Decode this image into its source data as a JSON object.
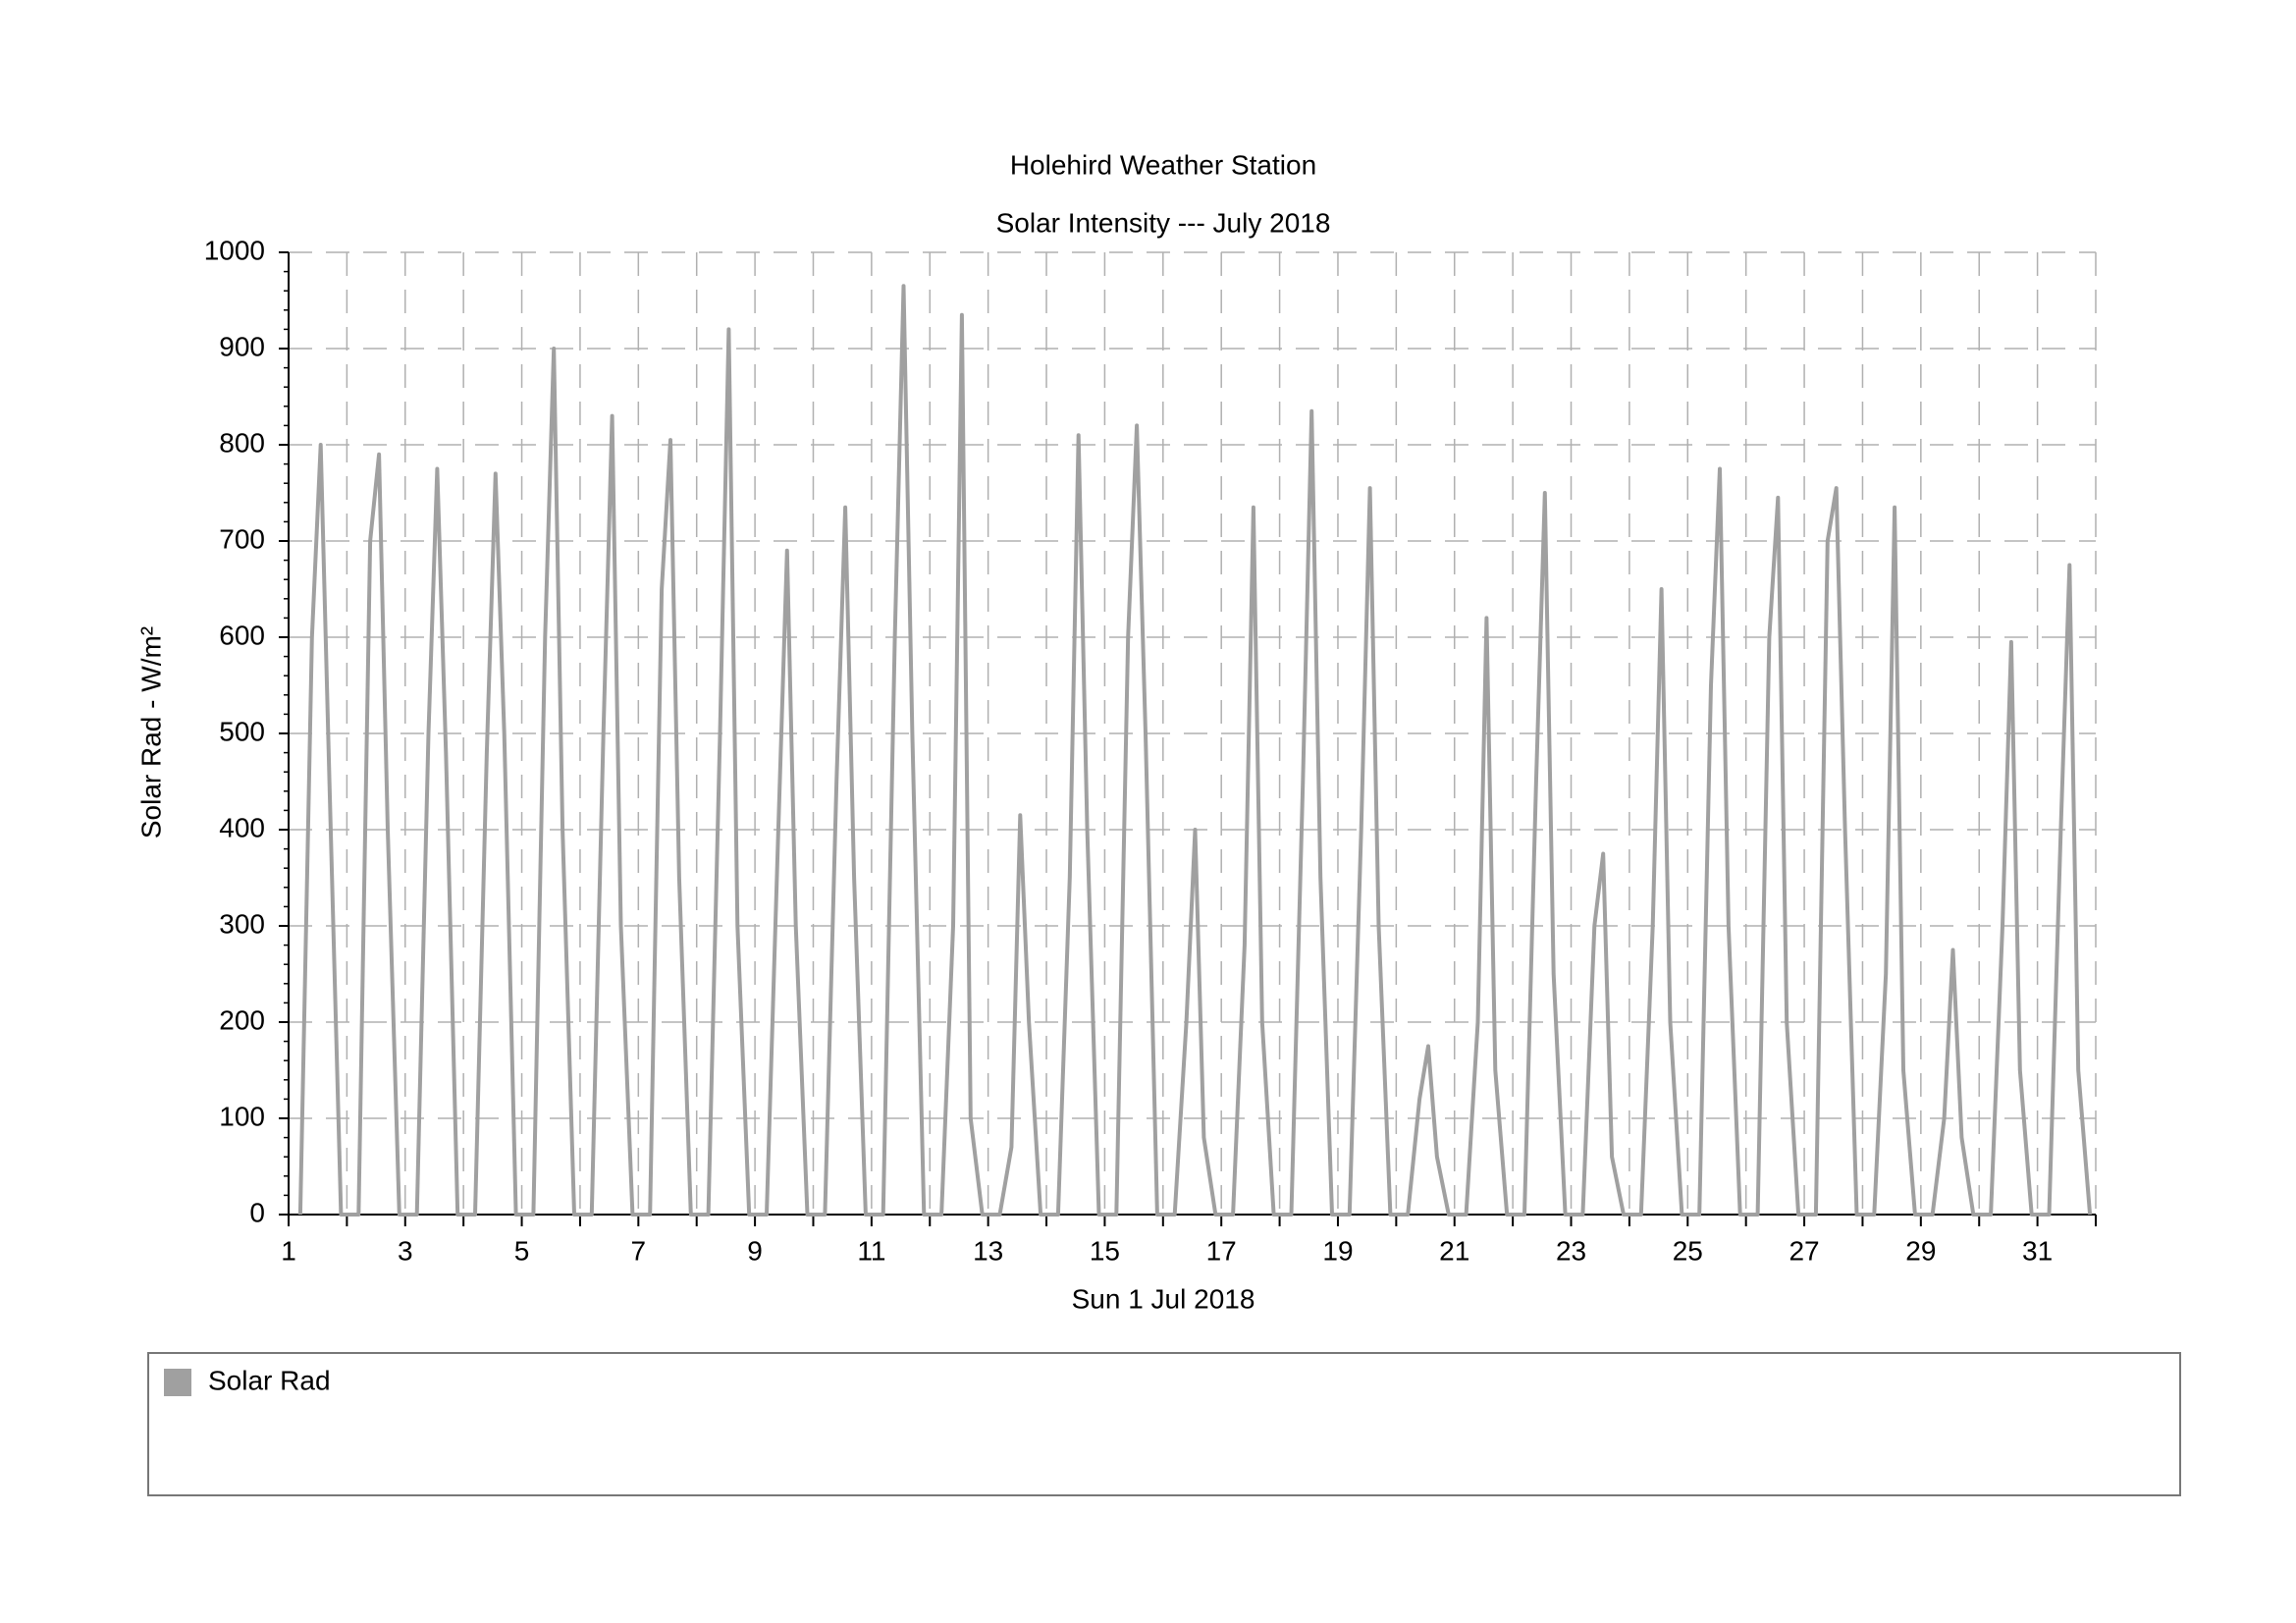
{
  "chart_data": {
    "type": "line",
    "title": "Holehird Weather Station",
    "subtitle": "Solar Intensity --- July 2018",
    "x_label": "Sun 1 Jul 2018",
    "y_label": "Solar Rad - W/m²",
    "x": [
      1.2,
      1.4,
      1.55,
      1.7,
      1.9,
      2.2,
      2.4,
      2.55,
      2.7,
      2.9,
      3.2,
      3.4,
      3.55,
      3.7,
      3.9,
      4.2,
      4.4,
      4.55,
      4.7,
      4.9,
      5.2,
      5.4,
      5.55,
      5.7,
      5.9,
      6.2,
      6.4,
      6.55,
      6.7,
      6.9,
      7.2,
      7.4,
      7.55,
      7.7,
      7.9,
      8.2,
      8.4,
      8.55,
      8.7,
      8.9,
      9.2,
      9.4,
      9.55,
      9.7,
      9.9,
      10.2,
      10.4,
      10.55,
      10.7,
      10.9,
      11.2,
      11.4,
      11.55,
      11.7,
      11.9,
      12.2,
      12.4,
      12.55,
      12.7,
      12.9,
      13.2,
      13.4,
      13.55,
      13.7,
      13.9,
      14.2,
      14.4,
      14.55,
      14.7,
      14.9,
      15.2,
      15.4,
      15.55,
      15.7,
      15.9,
      16.2,
      16.4,
      16.55,
      16.7,
      16.9,
      17.2,
      17.4,
      17.55,
      17.7,
      17.9,
      18.2,
      18.4,
      18.55,
      18.7,
      18.9,
      19.2,
      19.4,
      19.55,
      19.7,
      19.9,
      20.2,
      20.4,
      20.55,
      20.7,
      20.9,
      21.2,
      21.4,
      21.55,
      21.7,
      21.9,
      22.2,
      22.4,
      22.55,
      22.7,
      22.9,
      23.2,
      23.4,
      23.55,
      23.7,
      23.9,
      24.2,
      24.4,
      24.55,
      24.7,
      24.9,
      25.2,
      25.4,
      25.55,
      25.7,
      25.9,
      26.2,
      26.4,
      26.55,
      26.7,
      26.9,
      27.2,
      27.4,
      27.55,
      27.7,
      27.9,
      28.2,
      28.4,
      28.55,
      28.7,
      28.9,
      29.2,
      29.4,
      29.55,
      29.7,
      29.9,
      30.2,
      30.4,
      30.55,
      30.7,
      30.9,
      31.2,
      31.4,
      31.55,
      31.7,
      31.9
    ],
    "series": [
      {
        "name": "Solar Rad",
        "color": "#a0a0a0",
        "values": [
          0,
          600,
          800,
          450,
          0,
          0,
          700,
          790,
          400,
          0,
          0,
          500,
          775,
          480,
          0,
          0,
          480,
          770,
          500,
          0,
          0,
          600,
          900,
          400,
          0,
          0,
          500,
          830,
          300,
          0,
          0,
          650,
          805,
          350,
          0,
          0,
          500,
          920,
          300,
          0,
          0,
          400,
          690,
          300,
          0,
          0,
          450,
          735,
          350,
          0,
          0,
          600,
          965,
          500,
          0,
          0,
          300,
          935,
          100,
          0,
          0,
          70,
          415,
          200,
          0,
          0,
          350,
          810,
          400,
          0,
          0,
          600,
          820,
          500,
          0,
          0,
          200,
          400,
          80,
          0,
          0,
          280,
          735,
          200,
          0,
          0,
          450,
          835,
          350,
          0,
          0,
          400,
          755,
          300,
          0,
          0,
          120,
          175,
          60,
          0,
          0,
          200,
          620,
          150,
          0,
          0,
          450,
          750,
          250,
          0,
          0,
          300,
          375,
          60,
          0,
          0,
          300,
          650,
          200,
          0,
          0,
          550,
          775,
          300,
          0,
          0,
          600,
          745,
          200,
          0,
          0,
          700,
          755,
          400,
          0,
          0,
          250,
          735,
          150,
          0,
          0,
          100,
          275,
          80,
          0,
          0,
          300,
          595,
          150,
          0,
          0,
          400,
          675,
          150,
          0
        ]
      }
    ],
    "xlim": [
      1,
      32
    ],
    "xticks": [
      1,
      3,
      5,
      7,
      9,
      11,
      13,
      15,
      17,
      19,
      21,
      23,
      25,
      27,
      29,
      31
    ],
    "ylim": [
      0,
      1000
    ],
    "yticks": [
      0,
      100,
      200,
      300,
      400,
      500,
      600,
      700,
      800,
      900,
      1000
    ],
    "grid": true,
    "legend": "below"
  }
}
